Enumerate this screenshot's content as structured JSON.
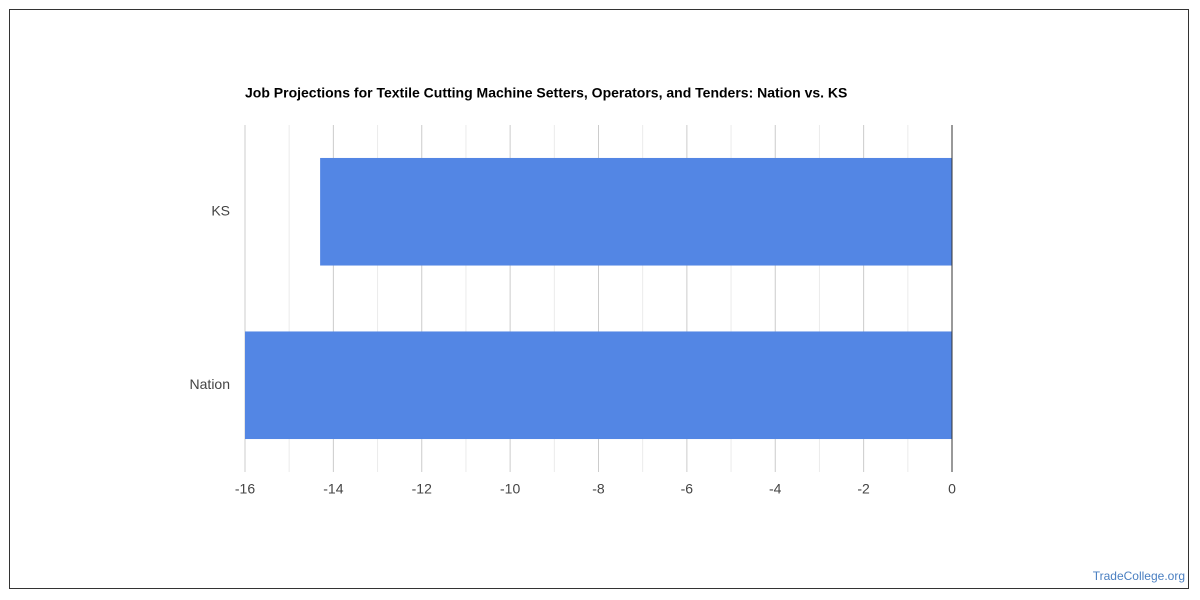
{
  "chart_data": {
    "type": "bar",
    "orientation": "horizontal",
    "title": "Job Projections for Textile Cutting Machine Setters, Operators, and Tenders: Nation vs. KS",
    "categories": [
      "KS",
      "Nation"
    ],
    "values": [
      -14.3,
      -16
    ],
    "color": "#5386e4",
    "xlim": [
      -16,
      0
    ],
    "xticks": [
      -16,
      -14,
      -12,
      -10,
      -8,
      -6,
      -4,
      -2,
      0
    ],
    "minor_xticks": [
      -15,
      -13,
      -11,
      -9,
      -7,
      -5,
      -3,
      -1
    ],
    "grid": true
  },
  "watermark": "TradeCollege.org"
}
